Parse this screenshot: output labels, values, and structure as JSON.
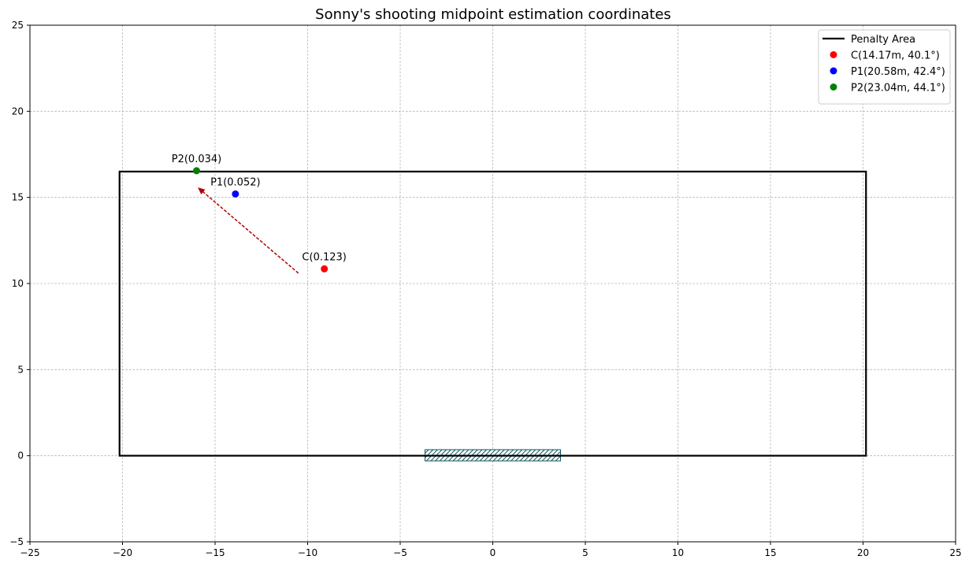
{
  "chart_data": {
    "type": "scatter",
    "title": "Sonny's shooting midpoint estimation coordinates",
    "xlim": [
      -25,
      25
    ],
    "ylim": [
      -5,
      25
    ],
    "x_ticks": [
      -25,
      -20,
      -15,
      -10,
      -5,
      0,
      5,
      10,
      15,
      20,
      25
    ],
    "y_ticks": [
      -5,
      0,
      5,
      10,
      15,
      20,
      25
    ],
    "grid": true,
    "legend_position": "top-right",
    "penalty_area": {
      "label": "Penalty Area",
      "color": "#000000",
      "x": [
        -20.16,
        20.16
      ],
      "y": [
        0,
        16.5
      ]
    },
    "goal": {
      "x": [
        -3.66,
        3.66
      ],
      "y": [
        -0.3,
        0.35
      ],
      "color": "#0b5560"
    },
    "points": [
      {
        "legend": "C(14.17m, 40.1°)",
        "annotation": "C(0.123)",
        "x": -9.1,
        "y": 10.85,
        "color": "#ff0000"
      },
      {
        "legend": "P1(20.58m, 42.4°)",
        "annotation": "P1(0.052)",
        "x": -13.9,
        "y": 15.2,
        "color": "#0000ff"
      },
      {
        "legend": "P2(23.04m, 44.1°)",
        "annotation": "P2(0.034)",
        "x": -16.0,
        "y": 16.55,
        "color": "#008000"
      }
    ],
    "arrow": {
      "from": [
        -10.5,
        10.6
      ],
      "to": [
        -15.9,
        15.55
      ],
      "color": "#b30000"
    }
  }
}
